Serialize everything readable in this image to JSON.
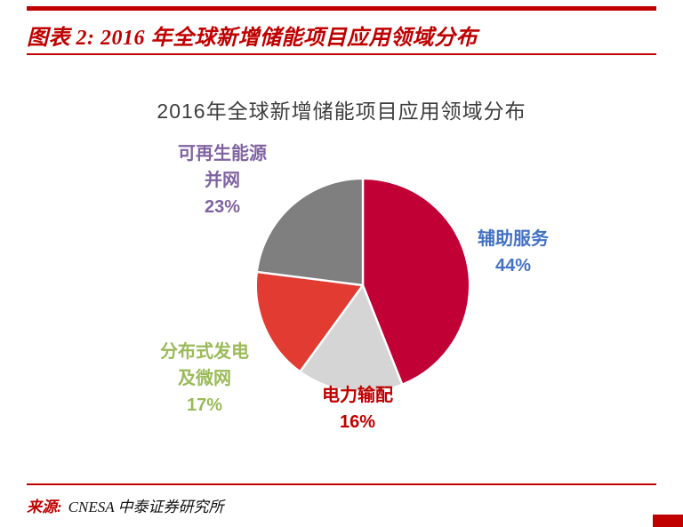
{
  "header": {
    "title": "图表 2: 2016 年全球新增储能项目应用领域分布"
  },
  "chart_data": {
    "type": "pie",
    "title": "2016年全球新增储能项目应用领域分布",
    "start_angle_deg": -90,
    "direction": "clockwise",
    "unit": "%",
    "slices": [
      {
        "key": "ancillary-services",
        "label": "辅助服务",
        "display": "辅助服务",
        "pct": "44%",
        "value": 44,
        "color": "#C10036",
        "label_color": "#4472C4"
      },
      {
        "key": "power-transmission",
        "label": "电力输配",
        "display": "电力输配",
        "pct": "16%",
        "value": 16,
        "color": "#D5D5D5",
        "label_color": "#C00000"
      },
      {
        "key": "distributed-generation-microgrid",
        "label": "分布式发电及微网",
        "display": "分布式发电\n及微网",
        "pct": "17%",
        "value": 17,
        "color": "#E13B32",
        "label_color": "#9BBB59"
      },
      {
        "key": "renewable-grid-integration",
        "label": "可再生能源并网",
        "display": "可再生能源\n并网",
        "pct": "23%",
        "value": 23,
        "color": "#7F7F7F",
        "label_color": "#8064A2"
      }
    ]
  },
  "footer": {
    "prefix": "来源:",
    "text": "CNESA 中泰证券研究所"
  },
  "colors": {
    "accent_red": "#C00000",
    "title_gray": "#3d3d3d"
  }
}
